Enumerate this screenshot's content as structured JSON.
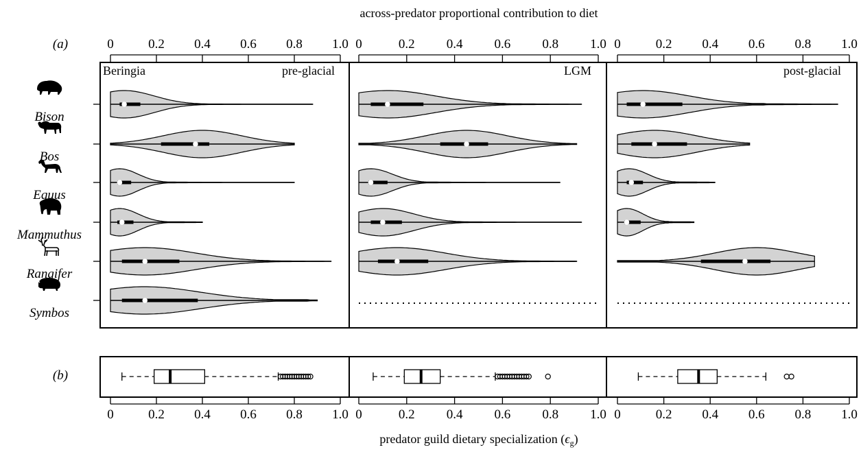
{
  "figure": {
    "top_axis_label": "across-predator proportional contribution to diet",
    "bottom_axis_label": "predator guild dietary specialization (",
    "bottom_axis_symbol": "ϵ",
    "bottom_axis_subscript": "g",
    "bottom_axis_close": ")",
    "panel_a_label": "(a)",
    "panel_b_label": "(b)",
    "colors": {
      "violin_fill": "#d3d3d3",
      "line": "#000000",
      "median_dot": "#ffffff"
    }
  },
  "chart_data": [
    {
      "type": "violin",
      "panel": "a",
      "x_axis": {
        "label": "across-predator proportional contribution to diet",
        "ticks": [
          0,
          0.2,
          0.4,
          0.6,
          0.8,
          1.0
        ],
        "tick_labels": [
          "0",
          "0.2",
          "0.4",
          "0.6",
          "0.8",
          "1.0"
        ],
        "range": [
          0,
          1
        ],
        "position": "top"
      },
      "species": [
        "Bison",
        "Bos",
        "Equus",
        "Mammuthus",
        "Rangifer",
        "Symbos"
      ],
      "species_icons": [
        "bison-icon",
        "aurochs-icon",
        "horse-icon",
        "mammoth-icon",
        "reindeer-icon",
        "muskox-icon"
      ],
      "facets": [
        {
          "label_left": "Beringia",
          "label_right": "pre-glacial",
          "groups": [
            {
              "species": "Bison",
              "min": 0.0,
              "q1": 0.04,
              "median": 0.06,
              "q3": 0.13,
              "whisker_hi": 0.28,
              "max": 0.88,
              "width": 0.8,
              "density_mode": 0.06,
              "density_spread": 0.13
            },
            {
              "species": "Bos",
              "min": 0.0,
              "q1": 0.22,
              "median": 0.37,
              "q3": 0.43,
              "whisker_hi": 0.68,
              "max": 0.8,
              "width": 0.8,
              "density_mode": 0.4,
              "density_spread": 0.17
            },
            {
              "species": "Equus",
              "min": 0.0,
              "q1": 0.03,
              "median": 0.04,
              "q3": 0.09,
              "whisker_hi": 0.19,
              "max": 0.8,
              "width": 0.8,
              "density_mode": 0.04,
              "density_spread": 0.08
            },
            {
              "species": "Mammuthus",
              "min": 0.0,
              "q1": 0.03,
              "median": 0.05,
              "q3": 0.1,
              "whisker_hi": 0.23,
              "max": 0.4,
              "width": 0.8,
              "density_mode": 0.04,
              "density_spread": 0.08
            },
            {
              "species": "Rangifer",
              "min": 0.0,
              "q1": 0.05,
              "median": 0.15,
              "q3": 0.3,
              "whisker_hi": 0.64,
              "max": 0.96,
              "width": 0.8,
              "density_mode": 0.15,
              "density_spread": 0.22
            },
            {
              "species": "Symbos",
              "min": 0.0,
              "q1": 0.05,
              "median": 0.15,
              "q3": 0.38,
              "whisker_hi": 0.86,
              "max": 0.9,
              "width": 0.8,
              "density_mode": 0.15,
              "density_spread": 0.24
            }
          ]
        },
        {
          "label_left": "",
          "label_right": "LGM",
          "groups": [
            {
              "species": "Bison",
              "min": 0.0,
              "q1": 0.05,
              "median": 0.12,
              "q3": 0.27,
              "whisker_hi": 0.59,
              "max": 0.93,
              "width": 0.8,
              "density_mode": 0.12,
              "density_spread": 0.2
            },
            {
              "species": "Bos",
              "min": 0.0,
              "q1": 0.34,
              "median": 0.45,
              "q3": 0.54,
              "whisker_hi": 0.83,
              "max": 0.91,
              "width": 0.8,
              "density_mode": 0.45,
              "density_spread": 0.17
            },
            {
              "species": "Equus",
              "min": 0.0,
              "q1": 0.04,
              "median": 0.05,
              "q3": 0.12,
              "whisker_hi": 0.24,
              "max": 0.84,
              "width": 0.8,
              "density_mode": 0.05,
              "density_spread": 0.09
            },
            {
              "species": "Mammuthus",
              "min": 0.0,
              "q1": 0.05,
              "median": 0.1,
              "q3": 0.18,
              "whisker_hi": 0.37,
              "max": 0.93,
              "width": 0.8,
              "density_mode": 0.1,
              "density_spread": 0.13
            },
            {
              "species": "Rangifer",
              "min": 0.0,
              "q1": 0.08,
              "median": 0.16,
              "q3": 0.29,
              "whisker_hi": 0.61,
              "max": 0.91,
              "width": 0.8,
              "density_mode": 0.16,
              "density_spread": 0.2
            },
            {
              "species": "Symbos",
              "absent": true
            }
          ]
        },
        {
          "label_left": "",
          "label_right": "post-glacial",
          "groups": [
            {
              "species": "Bison",
              "min": 0.0,
              "q1": 0.04,
              "median": 0.11,
              "q3": 0.28,
              "whisker_hi": 0.63,
              "max": 0.95,
              "width": 0.8,
              "density_mode": 0.11,
              "density_spread": 0.2
            },
            {
              "species": "Bos",
              "min": 0.0,
              "q1": 0.06,
              "median": 0.16,
              "q3": 0.3,
              "whisker_hi": 0.5,
              "max": 0.57,
              "width": 0.8,
              "density_mode": 0.16,
              "density_spread": 0.18
            },
            {
              "species": "Equus",
              "min": 0.0,
              "q1": 0.04,
              "median": 0.06,
              "q3": 0.11,
              "whisker_hi": 0.25,
              "max": 0.42,
              "width": 0.8,
              "density_mode": 0.05,
              "density_spread": 0.08
            },
            {
              "species": "Mammuthus",
              "min": 0.0,
              "q1": 0.03,
              "median": 0.04,
              "q3": 0.1,
              "whisker_hi": 0.22,
              "max": 0.33,
              "width": 0.8,
              "density_mode": 0.04,
              "density_spread": 0.07
            },
            {
              "species": "Rangifer",
              "min": 0.0,
              "q1": 0.36,
              "median": 0.55,
              "q3": 0.66,
              "whisker_hi": 0.8,
              "max": 0.85,
              "width": 0.8,
              "density_mode": 0.6,
              "density_spread": 0.18
            },
            {
              "species": "Symbos",
              "absent": true
            }
          ]
        }
      ]
    },
    {
      "type": "box",
      "panel": "b",
      "x_axis": {
        "label": "predator guild dietary specialization (ϵg)",
        "ticks": [
          0,
          0.2,
          0.4,
          0.6,
          0.8,
          1.0
        ],
        "tick_labels": [
          "0",
          "0.2",
          "0.4",
          "0.6",
          "0.8",
          "1.0"
        ],
        "range": [
          0,
          1
        ],
        "position": "bottom"
      },
      "facets": [
        {
          "label": "pre-glacial",
          "whisker_lo": 0.05,
          "q1": 0.19,
          "median": 0.26,
          "q3": 0.41,
          "whisker_hi": 0.73,
          "outliers": [
            0.74,
            0.75,
            0.76,
            0.77,
            0.78,
            0.79,
            0.8,
            0.81,
            0.82,
            0.83,
            0.84,
            0.85,
            0.86,
            0.87
          ]
        },
        {
          "label": "LGM",
          "whisker_lo": 0.06,
          "q1": 0.19,
          "median": 0.26,
          "q3": 0.34,
          "whisker_hi": 0.57,
          "outliers": [
            0.58,
            0.59,
            0.6,
            0.61,
            0.62,
            0.63,
            0.64,
            0.65,
            0.66,
            0.67,
            0.68,
            0.69,
            0.7,
            0.71,
            0.79
          ]
        },
        {
          "label": "post-glacial",
          "whisker_lo": 0.09,
          "q1": 0.26,
          "median": 0.35,
          "q3": 0.43,
          "whisker_hi": 0.64,
          "outliers": [
            0.73,
            0.75
          ]
        }
      ]
    }
  ]
}
